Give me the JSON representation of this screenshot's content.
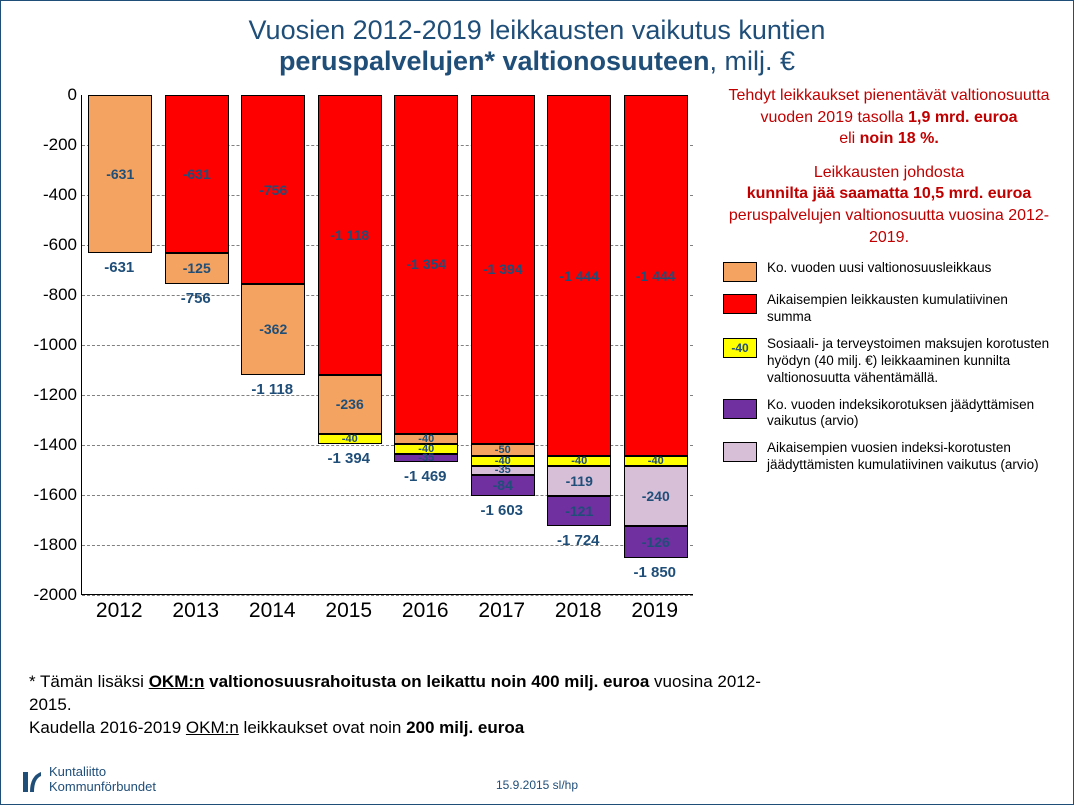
{
  "title": {
    "line1": "Vuosien 2012-2019 leikkausten vaikutus kuntien",
    "line2_bold": "peruspalvelujen* valtionosuuteen",
    "line2_rest": ", milj. €"
  },
  "chart": {
    "type": "stacked-bar",
    "ylim": [
      -2000,
      0
    ],
    "ytick_step": 200,
    "yticks": [
      0,
      -200,
      -400,
      -600,
      -800,
      -1000,
      -1200,
      -1400,
      -1600,
      -1800,
      -2000
    ],
    "categories": [
      "2012",
      "2013",
      "2014",
      "2015",
      "2016",
      "2017",
      "2018",
      "2019"
    ],
    "colors": {
      "cumulative_cuts": "#ff0000",
      "new_cut": "#f4a460",
      "sote_fee": "#ffff00",
      "index_current": "#7030a0",
      "index_cumulative": "#d8bfd8",
      "grid": "#808080",
      "axis": "#000000",
      "text": "#1f4e79"
    },
    "bars": [
      {
        "year": "2012",
        "total": -631,
        "segments": [
          {
            "k": "new_cut",
            "v": -631,
            "label": "-631"
          }
        ]
      },
      {
        "year": "2013",
        "total": -756,
        "segments": [
          {
            "k": "cumulative_cuts",
            "v": -631,
            "label": "-631"
          },
          {
            "k": "new_cut",
            "v": -125,
            "label": "-125"
          }
        ]
      },
      {
        "year": "2014",
        "total": -1118,
        "segments": [
          {
            "k": "cumulative_cuts",
            "v": -756,
            "label": "-756"
          },
          {
            "k": "new_cut",
            "v": -362,
            "label": "-362"
          }
        ]
      },
      {
        "year": "2015",
        "total": -1394,
        "segments": [
          {
            "k": "cumulative_cuts",
            "v": -1118,
            "label": "-1 118"
          },
          {
            "k": "new_cut",
            "v": -236,
            "label": "-236"
          },
          {
            "k": "sote_fee",
            "v": -40,
            "label": "-40"
          }
        ]
      },
      {
        "year": "2016",
        "total": -1469,
        "segments": [
          {
            "k": "cumulative_cuts",
            "v": -1354,
            "label": "-1 354"
          },
          {
            "k": "new_cut",
            "v": -40,
            "label": "-40"
          },
          {
            "k": "sote_fee",
            "v": -40,
            "label": "-40"
          },
          {
            "k": "index_current",
            "v": -35,
            "label": "-35"
          }
        ]
      },
      {
        "year": "2017",
        "total": -1603,
        "segments": [
          {
            "k": "cumulative_cuts",
            "v": -1394,
            "label": "-1 394"
          },
          {
            "k": "new_cut",
            "v": -50,
            "label": "-50"
          },
          {
            "k": "sote_fee",
            "v": -40,
            "label": "-40"
          },
          {
            "k": "index_cumulative",
            "v": -35,
            "label": "-35"
          },
          {
            "k": "index_current",
            "v": -84,
            "label": "-84"
          }
        ]
      },
      {
        "year": "2018",
        "total": -1724,
        "segments": [
          {
            "k": "cumulative_cuts",
            "v": -1444,
            "label": "-1 444"
          },
          {
            "k": "sote_fee",
            "v": -40,
            "label": "-40"
          },
          {
            "k": "index_cumulative",
            "v": -119,
            "label": "-119"
          },
          {
            "k": "index_current",
            "v": -121,
            "label": "-121"
          }
        ]
      },
      {
        "year": "2019",
        "total": -1850,
        "segments": [
          {
            "k": "cumulative_cuts",
            "v": -1444,
            "label": "-1 444"
          },
          {
            "k": "sote_fee",
            "v": -40,
            "label": "-40"
          },
          {
            "k": "index_cumulative",
            "v": -240,
            "label": "-240"
          },
          {
            "k": "index_current",
            "v": -126,
            "label": "-126"
          }
        ]
      }
    ],
    "totals_fmt": [
      "-631",
      "-756",
      "-1 118",
      "-1 394",
      "-1 469",
      "-1 603",
      "-1 724",
      "-1 850"
    ]
  },
  "side_text": {
    "p1a": "Tehdyt leikkaukset pienentävät valtionosuutta vuoden 2019 tasolla ",
    "p1b": "1,9 mrd. euroa",
    "p1c": " eli ",
    "p1d": "noin 18 %.",
    "p2a": "Leikkausten johdosta ",
    "p2b": "kunnilta jää saamatta 10,5 mrd. euroa",
    "p2c": " peruspalvelujen valtionosuutta vuosina 2012-2019."
  },
  "legend": [
    {
      "color": "#f4a460",
      "label": "Ko. vuoden uusi valtionosuusleikkaus"
    },
    {
      "color": "#ff0000",
      "label": "Aikaisempien leikkausten kumulatiivinen summa"
    },
    {
      "color": "#ffff00",
      "label": "Sosiaali- ja terveystoimen maksujen korotusten hyödyn (40 milj. €) leikkaaminen kunnilta valtionosuutta vähentämällä.",
      "swatch_label": "-40"
    },
    {
      "color": "#7030a0",
      "label": "Ko. vuoden indeksikorotuksen jäädyttämisen vaikutus (arvio)"
    },
    {
      "color": "#d8bfd8",
      "label": "Aikaisempien vuosien indeksi-korotusten jäädyttämisten kumulatiivinen vaikutus (arvio)"
    }
  ],
  "footnote": {
    "l1a": "* Tämän lisäksi ",
    "l1b": "OKM:n valtionosuusrahoitusta on leikattu  noin 400 milj. euroa",
    "l1c": " vuosina 2012-2015.",
    "l2a": "Kaudella 2016-2019 ",
    "l2b": "OKM:n",
    "l2c": " leikkaukset ovat noin ",
    "l2d": "200 milj. euroa"
  },
  "date": "15.9.2015 sl/hp",
  "logo": {
    "line1": "Kuntaliitto",
    "line2": "Kommunförbundet"
  }
}
